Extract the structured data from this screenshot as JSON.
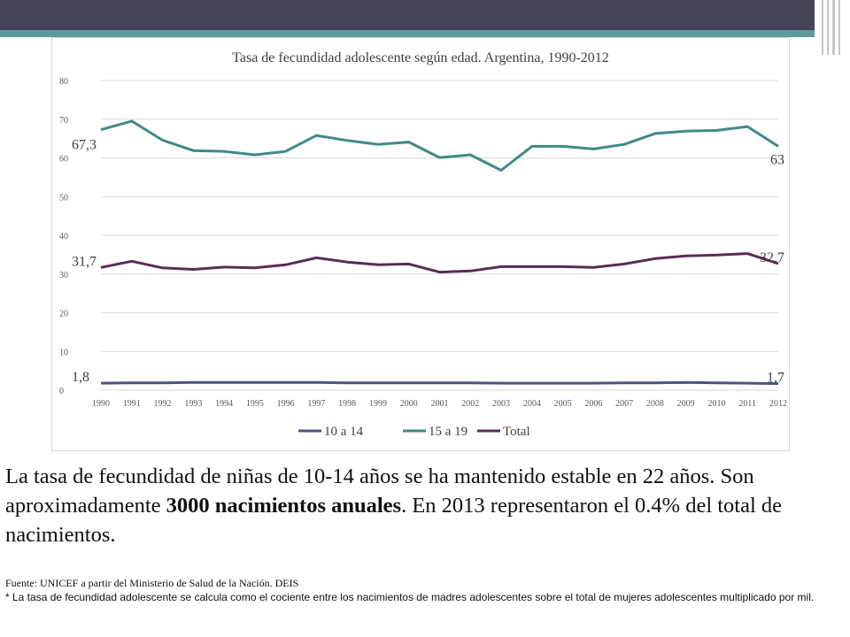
{
  "chart_data": {
    "type": "line",
    "title": "Tasa de fecundidad adolescente según edad. Argentina, 1990-2012",
    "xlabel": "",
    "ylabel": "",
    "ylim": [
      0,
      80
    ],
    "yticks": [
      "0",
      "10",
      "20",
      "30",
      "40",
      "50",
      "60",
      "70",
      "80"
    ],
    "categories": [
      "1990",
      "1991",
      "1992",
      "1993",
      "1994",
      "1995",
      "1996",
      "1997",
      "1998",
      "1999",
      "2000",
      "2001",
      "2002",
      "2003",
      "2004",
      "2005",
      "2006",
      "2007",
      "2008",
      "2009",
      "2010",
      "2011",
      "2012"
    ],
    "grid": true,
    "legend_position": "bottom",
    "series": [
      {
        "name": "10 a 14",
        "color": "#4a557f",
        "values": [
          1.8,
          1.9,
          1.9,
          2.0,
          2.0,
          2.0,
          2.0,
          2.0,
          1.9,
          1.9,
          1.9,
          1.9,
          1.9,
          1.8,
          1.8,
          1.8,
          1.8,
          1.9,
          1.9,
          2.0,
          1.9,
          1.8,
          1.7
        ],
        "start_label": "1,8",
        "end_label": "1,7"
      },
      {
        "name": "15 a 19",
        "color": "#3f8a87",
        "values": [
          67.3,
          69.5,
          64.6,
          61.9,
          61.7,
          60.8,
          61.7,
          65.8,
          64.5,
          63.5,
          64.1,
          60.1,
          60.8,
          56.8,
          63.0,
          63.0,
          62.3,
          63.5,
          66.3,
          66.9,
          67.1,
          68.1,
          63.0
        ],
        "start_label": "67,3",
        "end_label": "63"
      },
      {
        "name": "Total",
        "color": "#5b2c54",
        "values": [
          31.7,
          33.3,
          31.6,
          31.2,
          31.8,
          31.6,
          32.4,
          34.2,
          33.1,
          32.4,
          32.6,
          30.5,
          30.8,
          31.9,
          31.9,
          31.9,
          31.7,
          32.6,
          34.0,
          34.7,
          34.9,
          35.3,
          32.7
        ],
        "start_label": "31,7",
        "end_label": "32,7"
      }
    ]
  },
  "text": {
    "main_part1": "La tasa de fecundidad de niñas de 10-14 años se ha mantenido estable en 22 años. Son aproximadamente ",
    "main_bold": "3000 nacimientos anuales",
    "main_part2": ". En 2013 representaron el 0.4% del total de nacimientos.",
    "source": "Fuente: UNICEF a partir del Ministerio de Salud de la Nación. DEIS",
    "note": "* La tasa de fecundidad adolescente se calcula como el cociente entre los nacimientos de madres adolescentes sobre el total de mujeres adolescentes multiplicado por mil."
  },
  "colors": {
    "header": "#444456",
    "accent": "#5b9b9d"
  }
}
